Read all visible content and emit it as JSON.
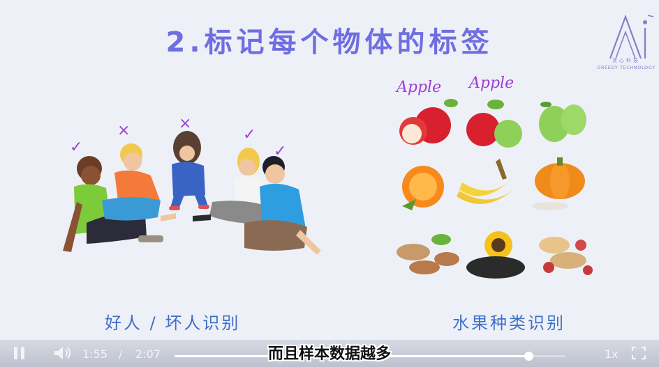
{
  "slide": {
    "title": "2.标记每个物体的标签",
    "logo": {
      "cn": "贪心科技",
      "en": "GREEDY TECHNOLOGY"
    },
    "left_caption": "好人 / 坏人识别",
    "right_caption": "水果种类识别",
    "people_marks": [
      "✓",
      "×",
      "×",
      "✓",
      "✓"
    ],
    "fruit_labels": [
      "Apple",
      "Apple"
    ]
  },
  "subtitle": "而且样本数据越多",
  "player": {
    "current_time": "1:55",
    "separator": "/",
    "duration": "2:07",
    "progress": 0.905,
    "speed": "1x",
    "icons": [
      "pause-icon",
      "volume-icon",
      "fullscreen-icon"
    ]
  },
  "colors": {
    "title": "#6f6ee0",
    "caption": "#3f6fc8",
    "mark": "#9c3fd6"
  }
}
